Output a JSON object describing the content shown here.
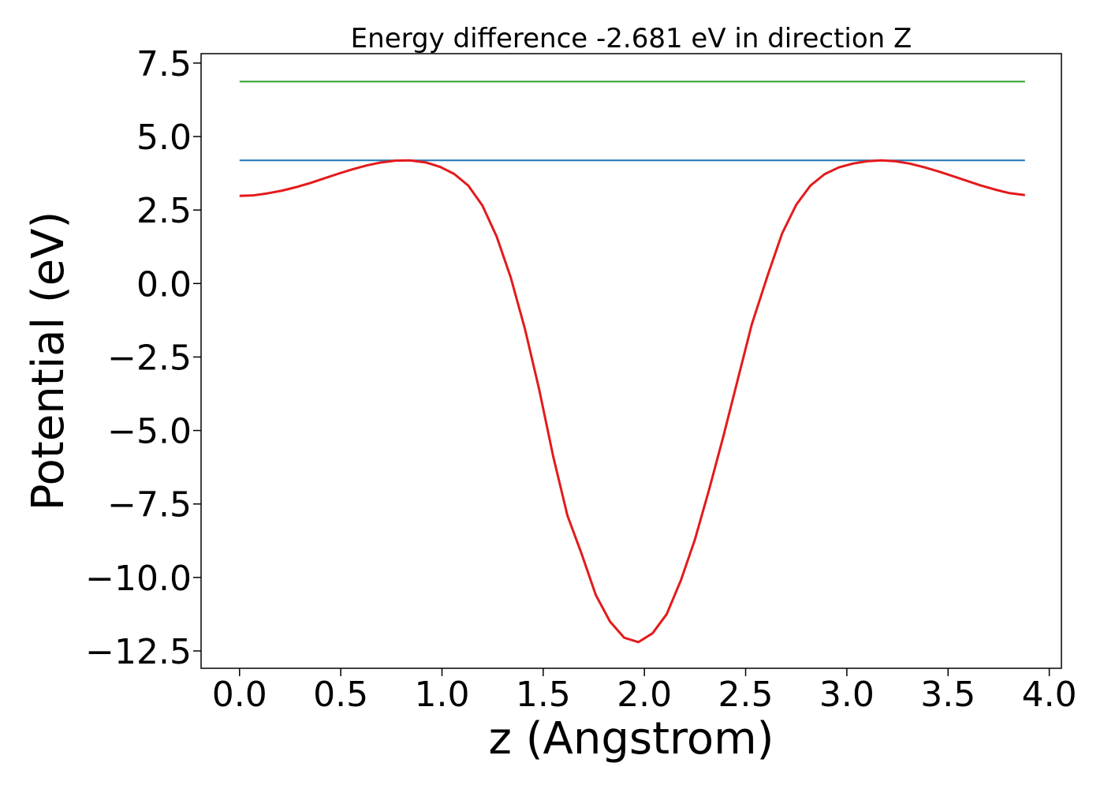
{
  "chart_data": {
    "type": "line",
    "title": "Energy difference -2.681 eV in direction Z",
    "xlabel": "z (Angstrom)",
    "ylabel": "Potential (eV)",
    "xlim": [
      -0.19,
      4.06
    ],
    "ylim": [
      -13.09,
      7.82
    ],
    "xticks": [
      0.0,
      0.5,
      1.0,
      1.5,
      2.0,
      2.5,
      3.0,
      3.5,
      4.0
    ],
    "xtick_labels": [
      "0.0",
      "0.5",
      "1.0",
      "1.5",
      "2.0",
      "2.5",
      "3.0",
      "3.5",
      "4.0"
    ],
    "yticks": [
      7.5,
      5.0,
      2.5,
      0.0,
      -2.5,
      -5.0,
      -7.5,
      -10.0,
      -12.5
    ],
    "ytick_labels": [
      "7.5",
      "5.0",
      "2.5",
      "0.0",
      "−2.5",
      "−5.0",
      "−7.5",
      "−10.0",
      "−12.5"
    ],
    "grid": false,
    "series": [
      {
        "color": "#2ca02c",
        "x": [
          0.0,
          3.88
        ],
        "y": [
          6.87,
          6.87
        ]
      },
      {
        "color": "#1f77b4",
        "x": [
          0.0,
          3.88
        ],
        "y": [
          4.19,
          4.19
        ]
      },
      {
        "color": "#e31a1c",
        "x": [
          0.0,
          0.07,
          0.14,
          0.21,
          0.28,
          0.35,
          0.42,
          0.49,
          0.56,
          0.63,
          0.7,
          0.77,
          0.84,
          0.92,
          0.99,
          1.06,
          1.13,
          1.2,
          1.27,
          1.34,
          1.41,
          1.48,
          1.55,
          1.62,
          1.69,
          1.76,
          1.83,
          1.9,
          1.97,
          2.04,
          2.11,
          2.18,
          2.25,
          2.32,
          2.39,
          2.46,
          2.53,
          2.61,
          2.68,
          2.75,
          2.82,
          2.89,
          2.96,
          3.03,
          3.1,
          3.17,
          3.24,
          3.31,
          3.38,
          3.45,
          3.52,
          3.59,
          3.66,
          3.73,
          3.8,
          3.88
        ],
        "y": [
          2.98,
          3.0,
          3.07,
          3.16,
          3.28,
          3.42,
          3.58,
          3.74,
          3.89,
          4.02,
          4.12,
          4.18,
          4.19,
          4.12,
          3.97,
          3.73,
          3.33,
          2.65,
          1.6,
          0.2,
          -1.55,
          -3.6,
          -5.9,
          -7.9,
          -9.2,
          -10.6,
          -11.5,
          -12.05,
          -12.2,
          -11.9,
          -11.25,
          -10.1,
          -8.7,
          -7.0,
          -5.2,
          -3.3,
          -1.4,
          0.3,
          1.7,
          2.68,
          3.33,
          3.72,
          3.95,
          4.08,
          4.16,
          4.19,
          4.16,
          4.08,
          3.96,
          3.82,
          3.66,
          3.5,
          3.34,
          3.2,
          3.08,
          3.01
        ]
      }
    ]
  }
}
